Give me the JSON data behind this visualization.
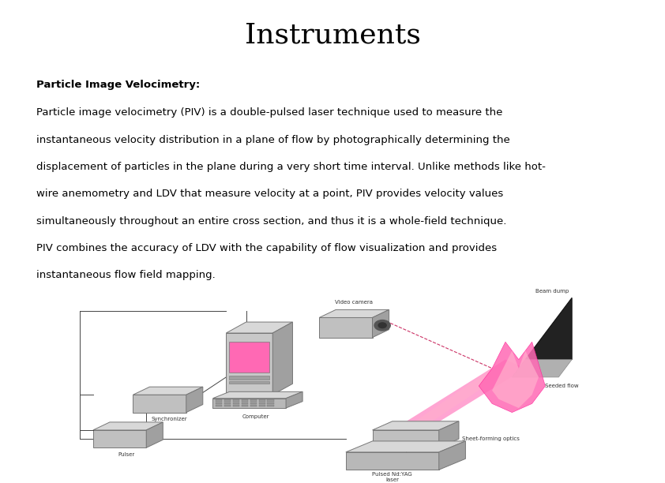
{
  "title": "Instruments",
  "title_fontsize": 26,
  "title_font": "serif",
  "bg_color": "#ffffff",
  "text_color": "#000000",
  "bold_label": "Particle Image Velocimetry:",
  "body_lines": [
    "Particle image velocimetry (PIV) is a double-pulsed laser technique used to measure the",
    "instantaneous velocity distribution in a plane of flow by photographically determining the",
    "displacement of particles in the plane during a very short time interval. Unlike methods like hot-",
    "wire anemometry and LDV that measure velocity at a point, PIV provides velocity values",
    "simultaneously throughout an entire cross section, and thus it is a whole-field technique.",
    "PIV combines the accuracy of LDV with the capability of flow visualization and provides",
    "instantaneous flow field mapping."
  ],
  "label_fontsize": 9.5,
  "body_fontsize": 9.5,
  "diagram_label_fontsize": 5.0,
  "gray_color": "#c0c0c0",
  "gray_dark": "#a0a0a0",
  "gray_light": "#d8d8d8",
  "edge_color": "#777777",
  "pink_color": "#ff69b4",
  "dark_color": "#2a2a2a",
  "line_color": "#444444",
  "dashed_color": "#cc3366"
}
